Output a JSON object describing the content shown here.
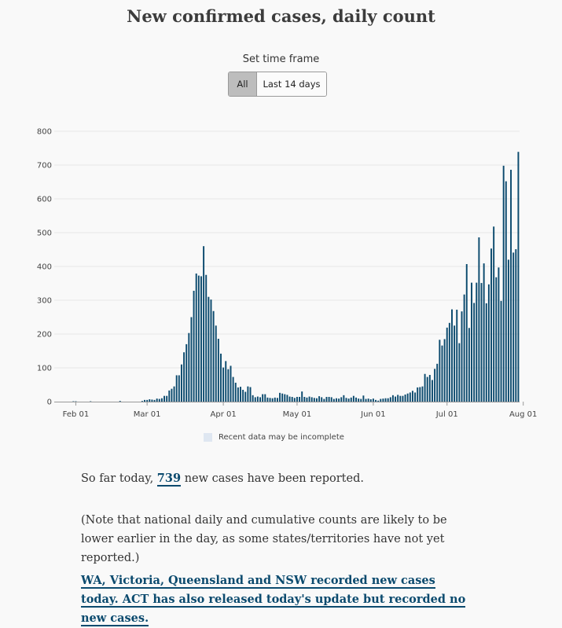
{
  "title": "New confirmed cases, daily count",
  "time_frame": {
    "label": "Set time frame",
    "options": [
      "All",
      "Last 14 days"
    ],
    "selected": "All"
  },
  "legend": {
    "incomplete_label": "Recent data may be incomplete"
  },
  "summary": {
    "prefix": "So far today,",
    "count": "739",
    "suffix": "new cases have been reported.",
    "note": "(Note that national daily and cumulative counts are likely to be lower earlier in the day, as some states/territories have not yet reported.)",
    "states_update": "WA, Victoria, Queensland and NSW recorded new cases today. ACT has also released today's update but recorded no new cases."
  },
  "colors": {
    "bar": "#0b4a6e",
    "incomplete_band": "#dfe7f1",
    "grid": "#e6e6e6",
    "link": "#0b4a6e"
  },
  "chart_data": {
    "type": "bar",
    "title": "New confirmed cases, daily count",
    "xlabel": "",
    "ylabel": "",
    "ylim": [
      0,
      800
    ],
    "yticks": [
      0,
      100,
      200,
      300,
      400,
      500,
      600,
      700,
      800
    ],
    "start_date": "2020-01-25",
    "x_tick_labels": [
      {
        "label": "Feb 01",
        "day_index": 7
      },
      {
        "label": "Mar 01",
        "day_index": 36
      },
      {
        "label": "Apr 01",
        "day_index": 67
      },
      {
        "label": "May 01",
        "day_index": 97
      },
      {
        "label": "Jun 01",
        "day_index": 128
      },
      {
        "label": "Jul 01",
        "day_index": 158
      },
      {
        "label": "Aug 01",
        "day_index": 189
      }
    ],
    "incomplete_from_index": 193,
    "values": [
      0,
      0,
      0,
      0,
      0,
      0,
      1,
      1,
      0,
      0,
      0,
      0,
      0,
      1,
      0,
      0,
      0,
      0,
      0,
      0,
      0,
      0,
      0,
      0,
      0,
      2,
      0,
      0,
      0,
      0,
      0,
      0,
      0,
      0,
      2,
      5,
      5,
      7,
      6,
      5,
      9,
      8,
      10,
      17,
      17,
      33,
      38,
      45,
      78,
      78,
      110,
      146,
      170,
      203,
      250,
      328,
      379,
      373,
      371,
      460,
      375,
      310,
      302,
      268,
      225,
      186,
      142,
      101,
      120,
      96,
      106,
      73,
      56,
      42,
      44,
      35,
      29,
      45,
      43,
      19,
      13,
      15,
      13,
      22,
      22,
      12,
      11,
      10,
      12,
      11,
      26,
      24,
      22,
      20,
      15,
      14,
      11,
      14,
      14,
      30,
      14,
      12,
      15,
      13,
      11,
      10,
      16,
      13,
      8,
      14,
      14,
      13,
      8,
      10,
      9,
      13,
      19,
      11,
      9,
      12,
      17,
      12,
      9,
      8,
      18,
      8,
      9,
      7,
      9,
      5,
      3,
      8,
      9,
      10,
      10,
      13,
      19,
      15,
      20,
      17,
      17,
      21,
      24,
      27,
      32,
      27,
      42,
      43,
      45,
      82,
      73,
      79,
      64,
      97,
      112,
      183,
      166,
      185,
      219,
      233,
      273,
      225,
      272,
      173,
      267,
      317,
      407,
      218,
      352,
      292,
      352,
      486,
      351,
      409,
      291,
      347,
      453,
      518,
      368,
      397,
      298,
      698,
      652,
      420,
      686,
      441,
      451,
      739
    ]
  }
}
